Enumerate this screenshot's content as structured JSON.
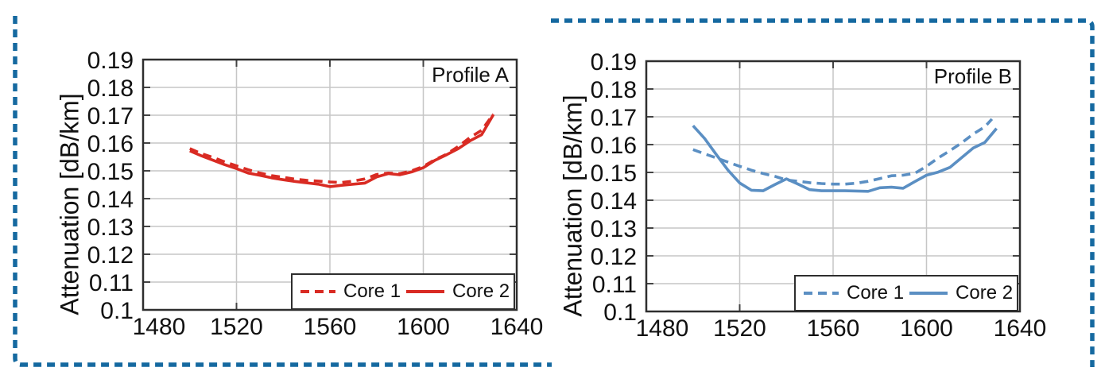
{
  "figure": {
    "background": "#ffffff",
    "frame_color": "#1569a0",
    "grid_color": "#c6c6c6",
    "axis_color": "#2e2e2e"
  },
  "chart_data": [
    {
      "type": "line",
      "annotation": "Profile A",
      "xlabel": "",
      "ylabel": "Attenuation [dB/km]",
      "xlim": [
        1480,
        1640
      ],
      "ylim": [
        0.1,
        0.19
      ],
      "x_tick_labels": [
        "1480",
        "1520",
        "1560",
        "1600",
        "1640"
      ],
      "y_tick_labels": [
        "0.19",
        "0.18",
        "0.17",
        "0.16",
        "0.15",
        "0.14",
        "0.13",
        "0.12",
        "0.11",
        "0.1"
      ],
      "grid": true,
      "legend_position": "bottom-right",
      "color": "#d92b23",
      "series": [
        {
          "name": "Core 1",
          "style": "dashed",
          "points": [
            [
              1500,
              0.158
            ],
            [
              1505,
              0.1562
            ],
            [
              1510,
              0.1548
            ],
            [
              1515,
              0.1532
            ],
            [
              1520,
              0.1518
            ],
            [
              1525,
              0.1504
            ],
            [
              1530,
              0.1492
            ],
            [
              1535,
              0.1483
            ],
            [
              1540,
              0.1477
            ],
            [
              1545,
              0.147
            ],
            [
              1550,
              0.1466
            ],
            [
              1555,
              0.1463
            ],
            [
              1560,
              0.146
            ],
            [
              1565,
              0.1458
            ],
            [
              1570,
              0.1463
            ],
            [
              1575,
              0.1471
            ],
            [
              1580,
              0.1487
            ],
            [
              1585,
              0.1492
            ],
            [
              1590,
              0.149
            ],
            [
              1595,
              0.15
            ],
            [
              1600,
              0.1516
            ],
            [
              1605,
              0.154
            ],
            [
              1610,
              0.156
            ],
            [
              1615,
              0.1588
            ],
            [
              1620,
              0.162
            ],
            [
              1625,
              0.1646
            ],
            [
              1630,
              0.1704
            ]
          ]
        },
        {
          "name": "Core 2",
          "style": "solid",
          "points": [
            [
              1500,
              0.1572
            ],
            [
              1505,
              0.1554
            ],
            [
              1510,
              0.1538
            ],
            [
              1515,
              0.1522
            ],
            [
              1520,
              0.1508
            ],
            [
              1525,
              0.1492
            ],
            [
              1530,
              0.1484
            ],
            [
              1535,
              0.1475
            ],
            [
              1540,
              0.1468
            ],
            [
              1545,
              0.1462
            ],
            [
              1550,
              0.1457
            ],
            [
              1555,
              0.1452
            ],
            [
              1560,
              0.1443
            ],
            [
              1565,
              0.1448
            ],
            [
              1570,
              0.1452
            ],
            [
              1575,
              0.1456
            ],
            [
              1580,
              0.1478
            ],
            [
              1585,
              0.149
            ],
            [
              1590,
              0.1486
            ],
            [
              1595,
              0.1496
            ],
            [
              1600,
              0.1511
            ],
            [
              1605,
              0.1538
            ],
            [
              1610,
              0.1558
            ],
            [
              1615,
              0.158
            ],
            [
              1620,
              0.1608
            ],
            [
              1625,
              0.163
            ],
            [
              1630,
              0.1702
            ]
          ]
        }
      ]
    },
    {
      "type": "line",
      "annotation": "Profile B",
      "xlabel": "",
      "ylabel": "Attenuation [dB/km]",
      "xlim": [
        1480,
        1640
      ],
      "ylim": [
        0.1,
        0.19
      ],
      "x_tick_labels": [
        "1480",
        "1520",
        "1560",
        "1600",
        "1640"
      ],
      "y_tick_labels": [
        "0.19",
        "0.18",
        "0.17",
        "0.16",
        "0.15",
        "0.14",
        "0.13",
        "0.12",
        "0.11",
        "0.1"
      ],
      "grid": true,
      "legend_position": "bottom-right",
      "color": "#5b8fc3",
      "series": [
        {
          "name": "Core 1",
          "style": "dashed",
          "points": [
            [
              1500,
              0.1582
            ],
            [
              1505,
              0.1567
            ],
            [
              1510,
              0.1552
            ],
            [
              1515,
              0.1537
            ],
            [
              1520,
              0.1522
            ],
            [
              1525,
              0.1508
            ],
            [
              1530,
              0.1496
            ],
            [
              1535,
              0.1486
            ],
            [
              1540,
              0.1473
            ],
            [
              1545,
              0.1468
            ],
            [
              1550,
              0.1463
            ],
            [
              1555,
              0.146
            ],
            [
              1560,
              0.1458
            ],
            [
              1565,
              0.1458
            ],
            [
              1570,
              0.1461
            ],
            [
              1575,
              0.1468
            ],
            [
              1580,
              0.1478
            ],
            [
              1585,
              0.1488
            ],
            [
              1590,
              0.149
            ],
            [
              1595,
              0.1497
            ],
            [
              1600,
              0.1522
            ],
            [
              1605,
              0.1552
            ],
            [
              1610,
              0.1578
            ],
            [
              1615,
              0.1606
            ],
            [
              1620,
              0.1638
            ],
            [
              1625,
              0.1664
            ],
            [
              1628,
              0.1692
            ]
          ]
        },
        {
          "name": "Core 2",
          "style": "solid",
          "points": [
            [
              1500,
              0.1668
            ],
            [
              1505,
              0.1622
            ],
            [
              1510,
              0.1564
            ],
            [
              1515,
              0.1508
            ],
            [
              1520,
              0.1462
            ],
            [
              1525,
              0.1436
            ],
            [
              1530,
              0.1434
            ],
            [
              1535,
              0.1456
            ],
            [
              1540,
              0.1477
            ],
            [
              1545,
              0.1458
            ],
            [
              1550,
              0.1438
            ],
            [
              1555,
              0.1434
            ],
            [
              1560,
              0.1434
            ],
            [
              1565,
              0.1434
            ],
            [
              1570,
              0.1433
            ],
            [
              1575,
              0.1432
            ],
            [
              1580,
              0.1445
            ],
            [
              1585,
              0.1447
            ],
            [
              1590,
              0.1443
            ],
            [
              1595,
              0.1467
            ],
            [
              1600,
              0.149
            ],
            [
              1605,
              0.1501
            ],
            [
              1610,
              0.1518
            ],
            [
              1615,
              0.1553
            ],
            [
              1620,
              0.1588
            ],
            [
              1625,
              0.1608
            ],
            [
              1630,
              0.1658
            ]
          ]
        }
      ]
    }
  ]
}
